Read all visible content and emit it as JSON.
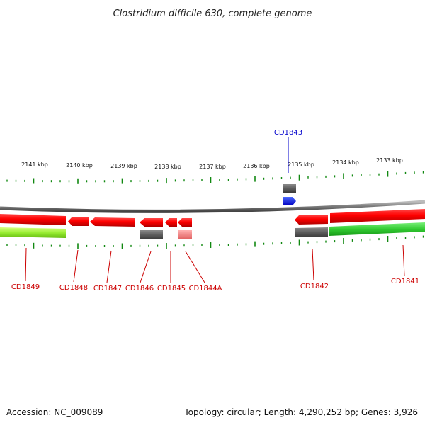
{
  "title": "Clostridium difficile 630, complete genome",
  "footer": {
    "accession": "Accession: NC_009089",
    "summary": "Topology: circular; Length: 4,290,252 bp; Genes: 3,926"
  },
  "scale_labels": [
    "2141 kbp",
    "2140 kbp",
    "2139 kbp",
    "2138 kbp",
    "2137 kbp",
    "2136 kbp",
    "2135 kbp",
    "2134 kbp",
    "2133 kbp"
  ],
  "genes": {
    "above": [
      {
        "label": "CD1843",
        "color": "#0000cc"
      }
    ],
    "below": [
      {
        "label": "CD1849",
        "color": "#cc0000"
      },
      {
        "label": "CD1848",
        "color": "#cc0000"
      },
      {
        "label": "CD1847",
        "color": "#cc0000"
      },
      {
        "label": "CD1846",
        "color": "#cc0000"
      },
      {
        "label": "CD1845",
        "color": "#cc0000"
      },
      {
        "label": "CD1844A",
        "color": "#cc0000"
      },
      {
        "label": "CD1842",
        "color": "#cc0000"
      },
      {
        "label": "CD1841",
        "color": "#cc0000"
      }
    ]
  },
  "colors": {
    "cds": "#ff0000",
    "cds_light": "#f08080",
    "gene_gray": "#666666",
    "strand_plus": "#0000ff",
    "lime": "#99ee33",
    "green": "#33cc33",
    "tick": "#118811",
    "backbone": "#888888"
  }
}
